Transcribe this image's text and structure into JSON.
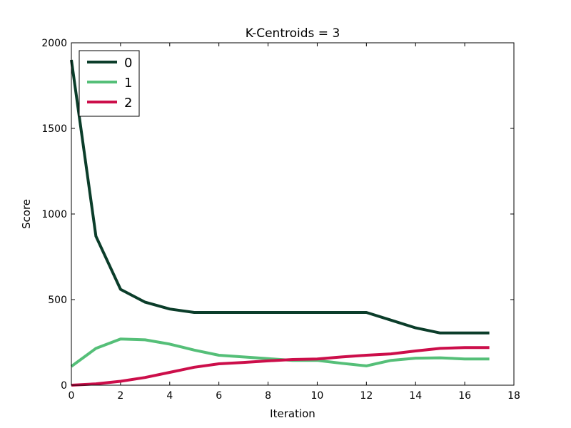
{
  "chart_data": {
    "type": "line",
    "title": "K-Centroids = 3",
    "xlabel": "Iteration",
    "ylabel": "Score",
    "xlim": [
      0,
      18
    ],
    "ylim": [
      0,
      2000
    ],
    "xticks": [
      0,
      2,
      4,
      6,
      8,
      10,
      12,
      14,
      16,
      18
    ],
    "yticks": [
      0,
      500,
      1000,
      1500,
      2000
    ],
    "grid": false,
    "legend_position": "top-left",
    "x": [
      0,
      1,
      2,
      3,
      4,
      5,
      6,
      7,
      8,
      9,
      10,
      11,
      12,
      13,
      14,
      15,
      16,
      17
    ],
    "series": [
      {
        "name": "0",
        "color": "#0b3d2a",
        "values": [
          1900,
          870,
          560,
          485,
          445,
          425,
          425,
          425,
          425,
          425,
          425,
          425,
          425,
          380,
          335,
          305,
          305,
          305
        ]
      },
      {
        "name": "1",
        "color": "#55bf78",
        "values": [
          110,
          215,
          270,
          265,
          240,
          205,
          175,
          165,
          155,
          145,
          145,
          128,
          113,
          145,
          158,
          160,
          153,
          153
        ]
      },
      {
        "name": "2",
        "color": "#cc0e4a",
        "values": [
          0,
          8,
          23,
          45,
          75,
          105,
          125,
          133,
          142,
          150,
          153,
          165,
          175,
          183,
          200,
          215,
          220,
          220
        ]
      }
    ]
  }
}
